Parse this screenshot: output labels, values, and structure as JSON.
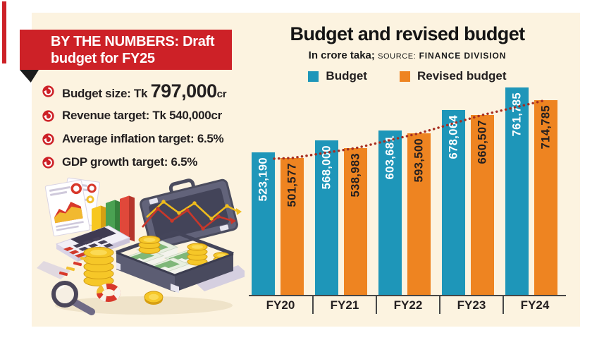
{
  "colors": {
    "background": "#ffffff",
    "panel": "#fcf3e0",
    "accent_red": "#cd2127",
    "budget_teal": "#1e96b9",
    "revised_orange": "#ee8421",
    "trend_dot_red": "#a62d20",
    "text_dark": "#231f20"
  },
  "infobox": {
    "banner": {
      "line1": "BY THE NUMBERS: Draft",
      "line2": "budget for FY25"
    },
    "bullet_icon": "circular-arrow-icon",
    "items": [
      {
        "prefix": "Budget size: Tk ",
        "highlight": "797,000",
        "suffix": "cr"
      },
      {
        "text": "Revenue target: Tk 540,000cr"
      },
      {
        "text": "Average inflation target: 6.5%"
      },
      {
        "text": "GDP growth target: 6.5%"
      }
    ],
    "illustration": "finance-isometric-illustration"
  },
  "chart": {
    "title": "Budget and revised budget",
    "subtitle": "In crore taka;",
    "source_label": "SOURCE:",
    "source_name": "FINANCE DIVISION"
  },
  "chart_data": {
    "type": "bar",
    "title": "Budget and revised budget",
    "unit": "crore taka",
    "source": "Finance Division",
    "categories": [
      "FY20",
      "FY21",
      "FY22",
      "FY23",
      "FY24"
    ],
    "series": [
      {
        "name": "Budget",
        "color": "#1e96b9",
        "label_color": "#ffffff",
        "values": [
          523190,
          568000,
          603681,
          678064,
          761785
        ]
      },
      {
        "name": "Revised budget",
        "color": "#ee8421",
        "label_color": "#231f20",
        "values": [
          501577,
          538983,
          593500,
          660507,
          714785
        ]
      }
    ],
    "trend_line": {
      "follows": "Revised budget",
      "style": "dotted",
      "color": "#a62d20"
    },
    "ylim": [
      0,
      800000
    ],
    "grid": false,
    "legend_position": "top",
    "bar_value_labels": "rotated-90-bottom-to-top"
  }
}
